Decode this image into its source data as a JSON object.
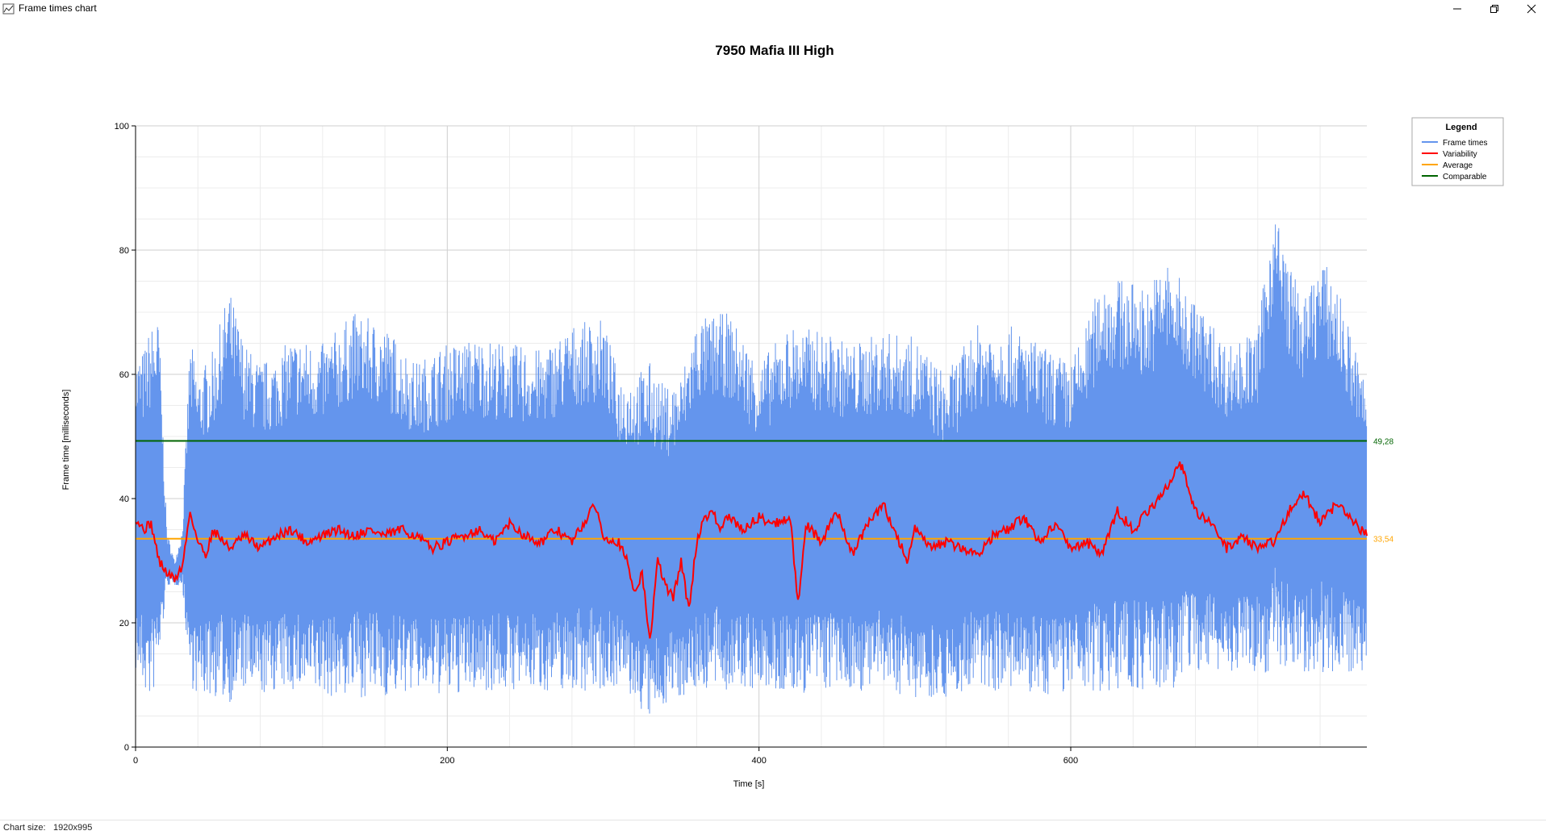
{
  "window": {
    "title": "Frame times chart",
    "icons": {
      "app": "chart-icon",
      "minimize": "minimize-icon",
      "restore": "restore-icon",
      "close": "close-icon"
    }
  },
  "status": {
    "label": "Chart size:",
    "value": "1920x995"
  },
  "colors": {
    "frame_times": "#6495ED",
    "variability": "#FF0000",
    "average": "#FFA500",
    "comparable": "#006400"
  },
  "chart_data": {
    "type": "line",
    "title": "7950 Mafia III High",
    "xlabel": "Time [s]",
    "ylabel": "Frame time [milliseconds]",
    "xlim": [
      0,
      790
    ],
    "ylim": [
      0,
      100
    ],
    "x_ticks": [
      "0",
      "200",
      "400",
      "600"
    ],
    "y_ticks": [
      "0",
      "20",
      "40",
      "60",
      "80",
      "100"
    ],
    "grid": true,
    "legend": {
      "title": "Legend",
      "position": "top-right",
      "entries": [
        "Frame times",
        "Variability",
        "Average",
        "Comparable"
      ]
    },
    "series": [
      {
        "name": "Frame times",
        "envelope_x": [
          0,
          5,
          10,
          15,
          20,
          25,
          30,
          35,
          40,
          50,
          60,
          70,
          80,
          90,
          100,
          120,
          140,
          160,
          180,
          200,
          220,
          240,
          260,
          280,
          300,
          310,
          320,
          330,
          340,
          350,
          360,
          380,
          400,
          420,
          440,
          460,
          480,
          500,
          520,
          540,
          560,
          580,
          600,
          610,
          620,
          640,
          650,
          660,
          680,
          700,
          720,
          730,
          740,
          750,
          760,
          770,
          790
        ],
        "envelope_max": [
          63,
          64,
          68,
          69,
          35,
          30,
          35,
          66,
          60,
          64,
          74,
          65,
          62,
          63,
          66,
          65,
          70,
          68,
          62,
          65,
          66,
          65,
          64,
          68,
          69,
          60,
          60,
          62,
          58,
          60,
          69,
          70,
          62,
          68,
          67,
          65,
          67,
          66,
          60,
          68,
          68,
          65,
          62,
          68,
          76,
          75,
          74,
          79,
          72,
          65,
          67,
          88,
          78,
          72,
          79,
          75,
          58
        ],
        "envelope_min": [
          12,
          9,
          7,
          12,
          26,
          26,
          26,
          10,
          8,
          8,
          7,
          9,
          8,
          9,
          9,
          8,
          8,
          8,
          9,
          8,
          9,
          9,
          9,
          9,
          9,
          10,
          7,
          4,
          7,
          8,
          9,
          9,
          9,
          8,
          9,
          9,
          9,
          8,
          8,
          9,
          9,
          8,
          9,
          9,
          9,
          9,
          9,
          8,
          12,
          12,
          12,
          12,
          12,
          12,
          12,
          12,
          12
        ]
      },
      {
        "name": "Variability",
        "x": [
          0,
          5,
          10,
          15,
          20,
          25,
          30,
          35,
          40,
          45,
          50,
          60,
          70,
          80,
          90,
          100,
          110,
          120,
          130,
          140,
          150,
          160,
          170,
          180,
          190,
          200,
          210,
          220,
          230,
          240,
          250,
          260,
          270,
          280,
          290,
          295,
          300,
          310,
          315,
          320,
          325,
          330,
          335,
          340,
          345,
          350,
          355,
          360,
          365,
          370,
          375,
          380,
          390,
          400,
          410,
          420,
          425,
          430,
          440,
          450,
          460,
          470,
          480,
          490,
          495,
          500,
          510,
          520,
          530,
          540,
          550,
          560,
          570,
          580,
          590,
          600,
          610,
          620,
          630,
          640,
          650,
          660,
          670,
          680,
          690,
          700,
          710,
          720,
          730,
          740,
          750,
          760,
          770,
          775,
          790
        ],
        "y": [
          37,
          35,
          36,
          30,
          28,
          27,
          29,
          38,
          33,
          31,
          35,
          32,
          34,
          32,
          34,
          35,
          33,
          34,
          35,
          34,
          35,
          34,
          35,
          34,
          32,
          33,
          34,
          35,
          33,
          36,
          34,
          33,
          35,
          33,
          37,
          39,
          34,
          33,
          30,
          25,
          28,
          17,
          30,
          26,
          24,
          30,
          22,
          33,
          37,
          38,
          35,
          37,
          35,
          37,
          36,
          37,
          23,
          36,
          33,
          38,
          31,
          36,
          39,
          33,
          30,
          35,
          32,
          33,
          32,
          31,
          34,
          35,
          37,
          33,
          36,
          32,
          33,
          31,
          38,
          35,
          38,
          41,
          46,
          38,
          36,
          32,
          34,
          32,
          33,
          38,
          41,
          36,
          39,
          38,
          34
        ]
      },
      {
        "name": "Average",
        "value": 33.54,
        "label": "33,54"
      },
      {
        "name": "Comparable",
        "value": 49.28,
        "label": "49,28"
      }
    ]
  }
}
